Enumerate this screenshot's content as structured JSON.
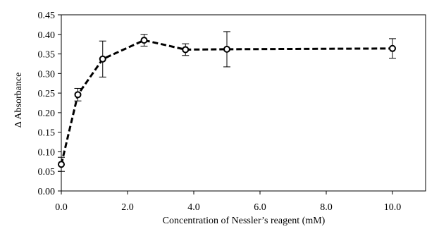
{
  "chart_data": {
    "type": "line",
    "title": "",
    "xlabel": "Concentration of Nessler’s reagent (mM)",
    "ylabel": "Δ Absorbance",
    "xlim": [
      0,
      11
    ],
    "ylim": [
      0,
      0.45
    ],
    "xticks": [
      0,
      2,
      4,
      6,
      8,
      10
    ],
    "xtick_labels": [
      "0.0",
      "2.0",
      "4.0",
      "6.0",
      "8.0",
      "10.0"
    ],
    "yticks": [
      0,
      0.05,
      0.1,
      0.15,
      0.2,
      0.25,
      0.3,
      0.35,
      0.4,
      0.45
    ],
    "ytick_labels": [
      "0.00",
      "0.05",
      "0.10",
      "0.15",
      "0.20",
      "0.25",
      "0.30",
      "0.35",
      "0.40",
      "0.45"
    ],
    "grid": false,
    "legend": "none",
    "line_style": "dashed",
    "marker": "open-circle",
    "color": "#000000",
    "series": [
      {
        "x": [
          0,
          0.5,
          1.25,
          2.5,
          3.75,
          5,
          10
        ],
        "y": [
          0.068,
          0.246,
          0.337,
          0.385,
          0.361,
          0.362,
          0.364
        ],
        "error": [
          0.018,
          0.016,
          0.046,
          0.015,
          0.015,
          0.045,
          0.025
        ]
      }
    ]
  }
}
